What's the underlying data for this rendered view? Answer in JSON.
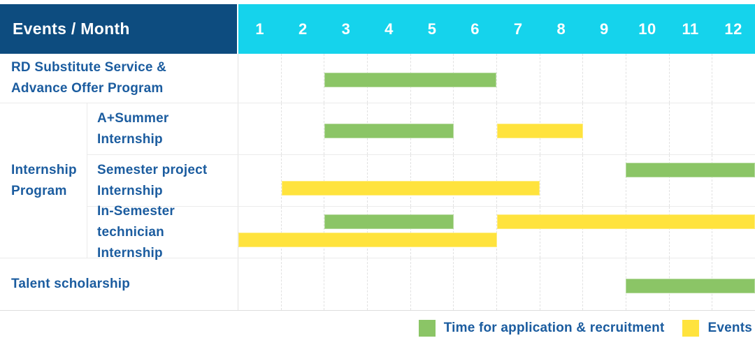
{
  "header": {
    "title": "Events / Month"
  },
  "colors": {
    "header_bg": "#0d4c7f",
    "months_bg": "#15d3ec",
    "label_text": "#1b5c9f",
    "application_green": "#8bc566",
    "events_yellow": "#ffe33d"
  },
  "chart_data": {
    "type": "bar",
    "subtype": "gantt-schedule",
    "title": "Events / Month",
    "x_unit": "month",
    "x_range": [
      1,
      12
    ],
    "months": [
      "1",
      "2",
      "3",
      "4",
      "5",
      "6",
      "7",
      "8",
      "9",
      "10",
      "11",
      "12"
    ],
    "grid": "dashed-vertical-month-lines",
    "legend_position": "bottom-right",
    "legend": [
      {
        "id": "application",
        "label": "Time for application & recruitment",
        "color": "#8bc566"
      },
      {
        "id": "events",
        "label": "Events",
        "color": "#ffe33d"
      }
    ],
    "row_groups": [
      {
        "group_label": null,
        "rows": [
          {
            "label": "RD Substitute Service & Advance Offer Program",
            "bars": [
              {
                "series": "application",
                "start_month": 3,
                "end_month": 6,
                "lane": "mid"
              }
            ]
          }
        ]
      },
      {
        "group_label": "Internship Program",
        "rows": [
          {
            "label": "A+Summer Internship",
            "bars": [
              {
                "series": "application",
                "start_month": 3,
                "end_month": 5,
                "lane": "mid"
              },
              {
                "series": "events",
                "start_month": 7,
                "end_month": 8,
                "lane": "mid"
              }
            ]
          },
          {
            "label": "Semester project Internship",
            "bars": [
              {
                "series": "application",
                "start_month": 10,
                "end_month": 12,
                "lane": "top"
              },
              {
                "series": "events",
                "start_month": 2,
                "end_month": 7,
                "lane": "bottom"
              }
            ]
          },
          {
            "label": "In-Semester technician Internship",
            "bars": [
              {
                "series": "application",
                "start_month": 3,
                "end_month": 5,
                "lane": "top"
              },
              {
                "series": "events",
                "start_month": 7,
                "end_month": 12,
                "lane": "top"
              },
              {
                "series": "events",
                "start_month": 1,
                "end_month": 6,
                "lane": "bottom"
              }
            ]
          }
        ]
      },
      {
        "group_label": null,
        "rows": [
          {
            "label": "Talent scholarship",
            "bars": [
              {
                "series": "application",
                "start_month": 10,
                "end_month": 12,
                "lane": "mid"
              }
            ]
          }
        ]
      }
    ]
  }
}
